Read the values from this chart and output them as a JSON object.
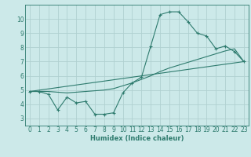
{
  "xlabel": "Humidex (Indice chaleur)",
  "background_color": "#cce9e9",
  "grid_color": "#b0d0d0",
  "line_color": "#2e7b6e",
  "xlim": [
    -0.5,
    23.5
  ],
  "ylim": [
    2.5,
    11.0
  ],
  "yticks": [
    3,
    4,
    5,
    6,
    7,
    8,
    9,
    10
  ],
  "xticks": [
    0,
    1,
    2,
    3,
    4,
    5,
    6,
    7,
    8,
    9,
    10,
    11,
    12,
    13,
    14,
    15,
    16,
    17,
    18,
    19,
    20,
    21,
    22,
    23
  ],
  "line1_x": [
    0,
    1,
    2,
    3,
    4,
    5,
    6,
    7,
    8,
    9,
    10,
    11,
    12,
    13,
    14,
    15,
    16,
    17,
    18,
    19,
    20,
    21,
    22,
    23
  ],
  "line1_y": [
    4.9,
    4.9,
    4.7,
    3.6,
    4.5,
    4.1,
    4.2,
    3.3,
    3.3,
    3.4,
    4.8,
    5.5,
    5.9,
    8.1,
    10.3,
    10.5,
    10.5,
    9.8,
    9.0,
    8.8,
    7.9,
    8.1,
    7.7,
    7.0
  ],
  "line2_x": [
    0,
    1,
    2,
    3,
    4,
    5,
    6,
    7,
    8,
    9,
    10,
    11,
    12,
    13,
    14,
    15,
    16,
    17,
    18,
    19,
    20,
    21,
    22,
    23
  ],
  "line2_y": [
    4.9,
    4.9,
    4.9,
    4.85,
    4.8,
    4.85,
    4.9,
    4.95,
    5.0,
    5.1,
    5.3,
    5.5,
    5.75,
    6.0,
    6.3,
    6.55,
    6.75,
    6.95,
    7.15,
    7.35,
    7.55,
    7.75,
    7.9,
    7.0
  ],
  "line3_x": [
    0,
    23
  ],
  "line3_y": [
    4.9,
    7.0
  ]
}
